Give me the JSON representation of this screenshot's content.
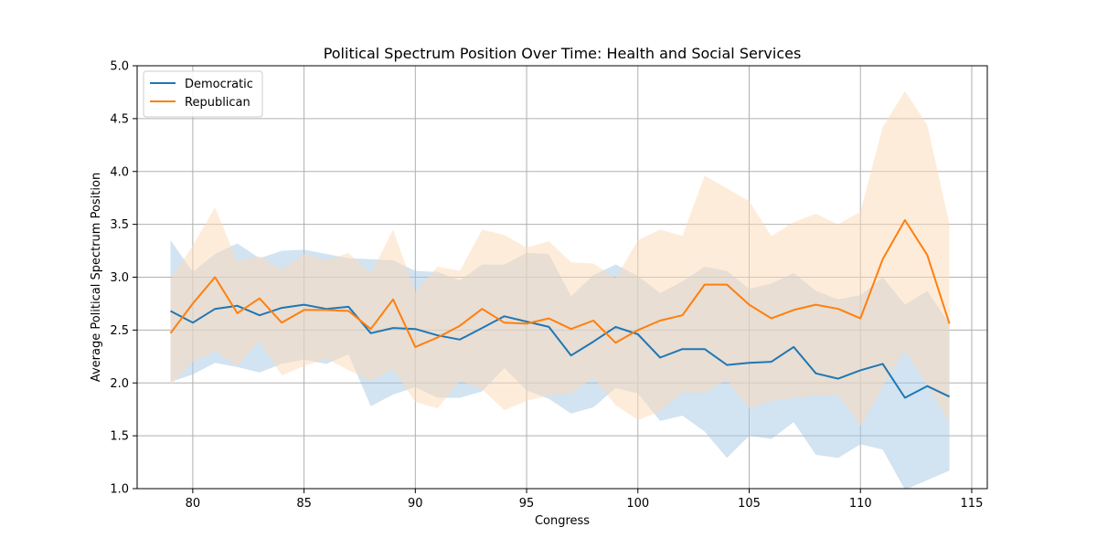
{
  "chart_data": {
    "type": "line",
    "title": "Political Spectrum Position Over Time: Health and Social Services",
    "xlabel": "Congress",
    "ylabel": "Average Political Spectrum Position",
    "xlim": [
      77.5,
      115.7
    ],
    "ylim": [
      1.0,
      5.0
    ],
    "xticks": [
      80,
      85,
      90,
      95,
      100,
      105,
      110,
      115
    ],
    "yticks": [
      1.0,
      1.5,
      2.0,
      2.5,
      3.0,
      3.5,
      4.0,
      4.5,
      5.0
    ],
    "grid": true,
    "legend_position": "top-left",
    "x": [
      79,
      80,
      81,
      82,
      83,
      84,
      85,
      86,
      87,
      88,
      89,
      90,
      91,
      92,
      93,
      94,
      95,
      96,
      97,
      98,
      99,
      100,
      101,
      102,
      103,
      104,
      105,
      106,
      107,
      108,
      109,
      110,
      111,
      112,
      113,
      114
    ],
    "series": [
      {
        "name": "Democratic",
        "color": "#1f77b4",
        "band_color": "#a6c8e3",
        "values": [
          2.68,
          2.57,
          2.7,
          2.73,
          2.64,
          2.71,
          2.74,
          2.7,
          2.72,
          2.47,
          2.52,
          2.51,
          2.45,
          2.41,
          2.52,
          2.63,
          2.58,
          2.53,
          2.26,
          2.39,
          2.53,
          2.46,
          2.24,
          2.32,
          2.32,
          2.17,
          2.19,
          2.2,
          2.34,
          2.09,
          2.04,
          2.12,
          2.18,
          1.86,
          1.97,
          1.87
        ],
        "upper": [
          3.35,
          3.05,
          3.22,
          3.32,
          3.18,
          3.25,
          3.26,
          3.22,
          3.18,
          3.17,
          3.16,
          3.06,
          3.05,
          2.97,
          3.12,
          3.12,
          3.23,
          3.22,
          2.82,
          3.02,
          3.12,
          3.01,
          2.85,
          2.96,
          3.1,
          3.06,
          2.89,
          2.94,
          3.04,
          2.87,
          2.79,
          2.83,
          3.0,
          2.74,
          2.87,
          2.56
        ],
        "lower": [
          2.01,
          2.08,
          2.19,
          2.15,
          2.1,
          2.18,
          2.22,
          2.18,
          2.27,
          1.78,
          1.89,
          1.96,
          1.86,
          1.86,
          1.92,
          2.14,
          1.93,
          1.85,
          1.71,
          1.77,
          1.95,
          1.9,
          1.64,
          1.69,
          1.54,
          1.29,
          1.5,
          1.47,
          1.63,
          1.32,
          1.29,
          1.42,
          1.37,
          0.99,
          1.08,
          1.17
        ]
      },
      {
        "name": "Republican",
        "color": "#ff7f0e",
        "band_color": "#fdd9b8",
        "values": [
          2.47,
          2.75,
          3.0,
          2.66,
          2.8,
          2.57,
          2.69,
          2.69,
          2.68,
          2.51,
          2.79,
          2.34,
          2.43,
          2.54,
          2.7,
          2.57,
          2.56,
          2.61,
          2.51,
          2.59,
          2.38,
          2.5,
          2.59,
          2.64,
          2.93,
          2.93,
          2.74,
          2.61,
          2.69,
          2.74,
          2.7,
          2.61,
          3.17,
          3.54,
          3.21,
          2.56
        ],
        "upper": [
          2.98,
          3.3,
          3.66,
          3.15,
          3.2,
          3.07,
          3.22,
          3.16,
          3.23,
          3.03,
          3.45,
          2.86,
          3.1,
          3.06,
          3.45,
          3.4,
          3.28,
          3.34,
          3.14,
          3.13,
          2.99,
          3.35,
          3.45,
          3.39,
          3.96,
          3.84,
          3.72,
          3.39,
          3.52,
          3.6,
          3.5,
          3.62,
          4.42,
          4.76,
          4.44,
          3.5
        ],
        "lower": [
          1.98,
          2.2,
          2.3,
          2.16,
          2.4,
          2.07,
          2.16,
          2.23,
          2.12,
          2.02,
          2.13,
          1.82,
          1.76,
          2.02,
          1.94,
          1.74,
          1.83,
          1.88,
          1.9,
          2.05,
          1.79,
          1.65,
          1.73,
          1.91,
          1.91,
          2.03,
          1.76,
          1.83,
          1.86,
          1.88,
          1.89,
          1.59,
          1.97,
          2.31,
          1.98,
          1.63
        ]
      }
    ]
  }
}
